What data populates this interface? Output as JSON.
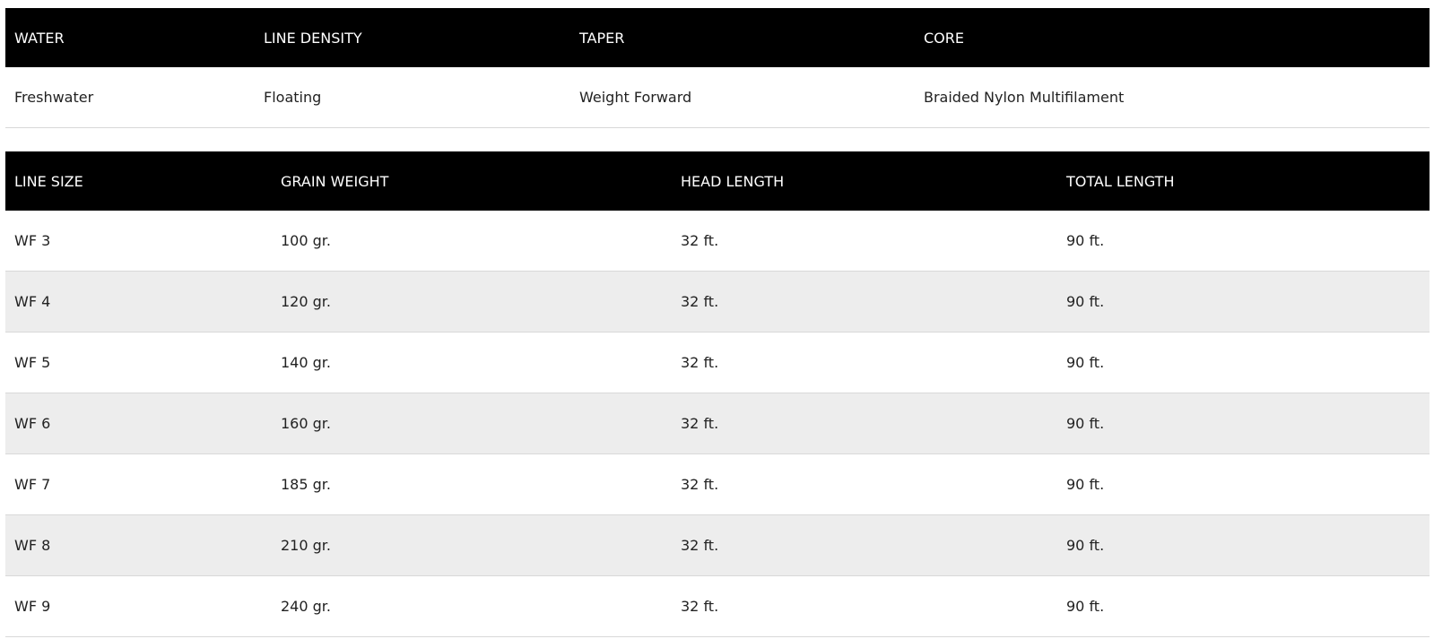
{
  "spec_table": {
    "headers": [
      "WATER",
      "LINE DENSITY",
      "TAPER",
      "CORE"
    ],
    "rows": [
      [
        "Freshwater",
        "Floating",
        "Weight Forward",
        "Braided Nylon Multifilament"
      ]
    ]
  },
  "size_table": {
    "headers": [
      "LINE SIZE",
      "GRAIN WEIGHT",
      "HEAD LENGTH",
      "TOTAL LENGTH"
    ],
    "rows": [
      [
        "WF 3",
        "100 gr.",
        "32 ft.",
        "90 ft."
      ],
      [
        "WF 4",
        "120 gr.",
        "32 ft.",
        "90 ft."
      ],
      [
        "WF 5",
        "140 gr.",
        "32 ft.",
        "90 ft."
      ],
      [
        "WF 6",
        "160 gr.",
        "32 ft.",
        "90 ft."
      ],
      [
        "WF 7",
        "185 gr.",
        "32 ft.",
        "90 ft."
      ],
      [
        "WF 8",
        "210 gr.",
        "32 ft.",
        "90 ft."
      ],
      [
        "WF 9",
        "240 gr.",
        "32 ft.",
        "90 ft."
      ]
    ]
  }
}
